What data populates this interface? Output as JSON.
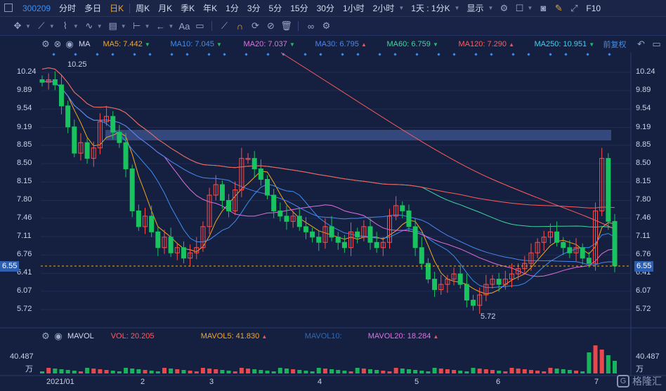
{
  "topbar": {
    "code": "300209",
    "periods": [
      "分时",
      "多日",
      "日K",
      "周K",
      "月K",
      "季K",
      "年K",
      "1分",
      "3分",
      "5分",
      "15分",
      "30分",
      "1小时",
      "2小时",
      "1天 : 1分K"
    ],
    "active_period": "日K",
    "display_label": "显示",
    "f10_label": "F10"
  },
  "toolbar": {
    "aa_label": "Aa"
  },
  "ma_legend": {
    "name": "MA",
    "items": [
      {
        "label": "MA5: 7.442",
        "color": "#f5a623",
        "trend": "▼"
      },
      {
        "label": "MA10: 7.045",
        "color": "#3d8ef0",
        "trend": "▼"
      },
      {
        "label": "MA20: 7.037",
        "color": "#e36fe0",
        "trend": "▼"
      },
      {
        "label": "MA30: 6.795",
        "color": "#4a86f0",
        "trend": "▲"
      },
      {
        "label": "MA60: 6.759",
        "color": "#3ed6a0",
        "trend": "▼"
      },
      {
        "label": "MA120: 7.290",
        "color": "#ff5c5c",
        "trend": "▲"
      },
      {
        "label": "MA250: 10.951",
        "color": "#3fd0f0",
        "trend": "▼"
      }
    ],
    "fq_label": "前复权"
  },
  "price_axis": [
    "10.24",
    "9.89",
    "9.54",
    "9.19",
    "8.85",
    "8.50",
    "8.15",
    "7.80",
    "7.46",
    "7.11",
    "6.76",
    "6.41",
    "6.07",
    "5.72"
  ],
  "current_price": "6.55",
  "high_label": "10.25",
  "low_label": "5.72",
  "vol_legend": {
    "name": "MAVOL",
    "vol": "VOL: 20.205",
    "mavol5": "MAVOL5: 41.830",
    "mavol10": "MAVOL10:",
    "mavol20": "MAVOL20: 18.284",
    "trend5": "▲",
    "trend20": "▲"
  },
  "vol_axis": {
    "value": "40.487",
    "unit": "万"
  },
  "date_ticks": [
    {
      "label": "2021/01",
      "x": 0
    },
    {
      "label": "2",
      "x": 1
    },
    {
      "label": "3",
      "x": 2
    },
    {
      "label": "4",
      "x": 3
    },
    {
      "label": "5",
      "x": 4
    },
    {
      "label": "6",
      "x": 5
    },
    {
      "label": "7",
      "x": 6
    }
  ],
  "watermark": "格隆汇",
  "colors": {
    "up": "#ff4d4d",
    "down": "#19c35f",
    "bg": "#152040",
    "band": "#3a5088"
  },
  "chart_data": {
    "type": "candlestick",
    "ylim": [
      5.55,
      10.45
    ],
    "series_close": [
      10.05,
      10.1,
      10.0,
      9.6,
      9.2,
      8.7,
      8.9,
      8.6,
      8.8,
      9.3,
      9.4,
      9.1,
      8.9,
      8.4,
      7.6,
      7.3,
      7.5,
      7.2,
      6.9,
      7.1,
      6.8,
      6.9,
      6.7,
      6.8,
      6.9,
      7.3,
      7.9,
      8.1,
      7.8,
      7.6,
      8.0,
      8.6,
      8.6,
      8.4,
      8.2,
      7.9,
      7.6,
      7.5,
      7.4,
      7.5,
      7.3,
      7.2,
      7.1,
      7.0,
      7.3,
      7.1,
      7.0,
      6.9,
      7.2,
      7.1,
      7.3,
      7.0,
      6.9,
      7.0,
      7.5,
      7.7,
      7.6,
      7.3,
      6.9,
      6.6,
      6.3,
      6.1,
      6.2,
      6.3,
      6.4,
      6.2,
      5.9,
      5.8,
      6.0,
      6.2,
      6.3,
      6.2,
      6.3,
      6.4,
      6.5,
      6.6,
      6.8,
      7.0,
      7.1,
      7.2,
      7.0,
      6.9,
      6.8,
      6.9,
      6.7,
      6.6,
      7.6,
      8.6,
      7.4,
      6.55
    ]
  }
}
